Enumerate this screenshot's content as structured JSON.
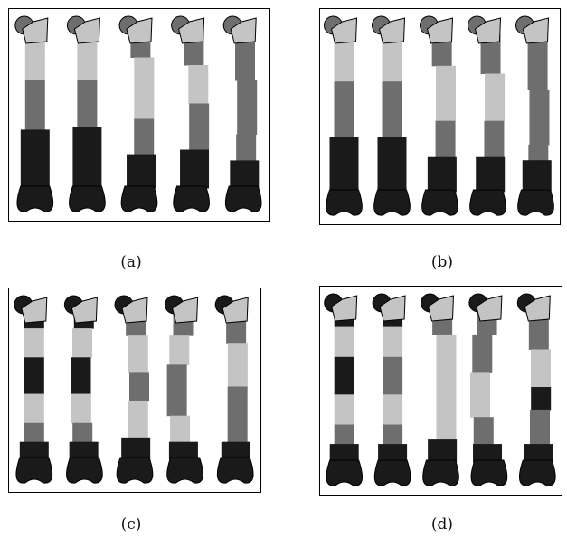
{
  "figure": {
    "panels": [
      {
        "id": "a",
        "caption": "(a)",
        "bones": 5
      },
      {
        "id": "b",
        "caption": "(b)",
        "bones": 5
      },
      {
        "id": "c",
        "caption": "(c)",
        "bones": 5
      },
      {
        "id": "d",
        "caption": "(d)",
        "bones": 5
      }
    ]
  },
  "colors": {
    "dark": "#1a1a1a",
    "mid": "#6e6e6e",
    "light": "#c4c4c4",
    "outline": "#000000"
  }
}
